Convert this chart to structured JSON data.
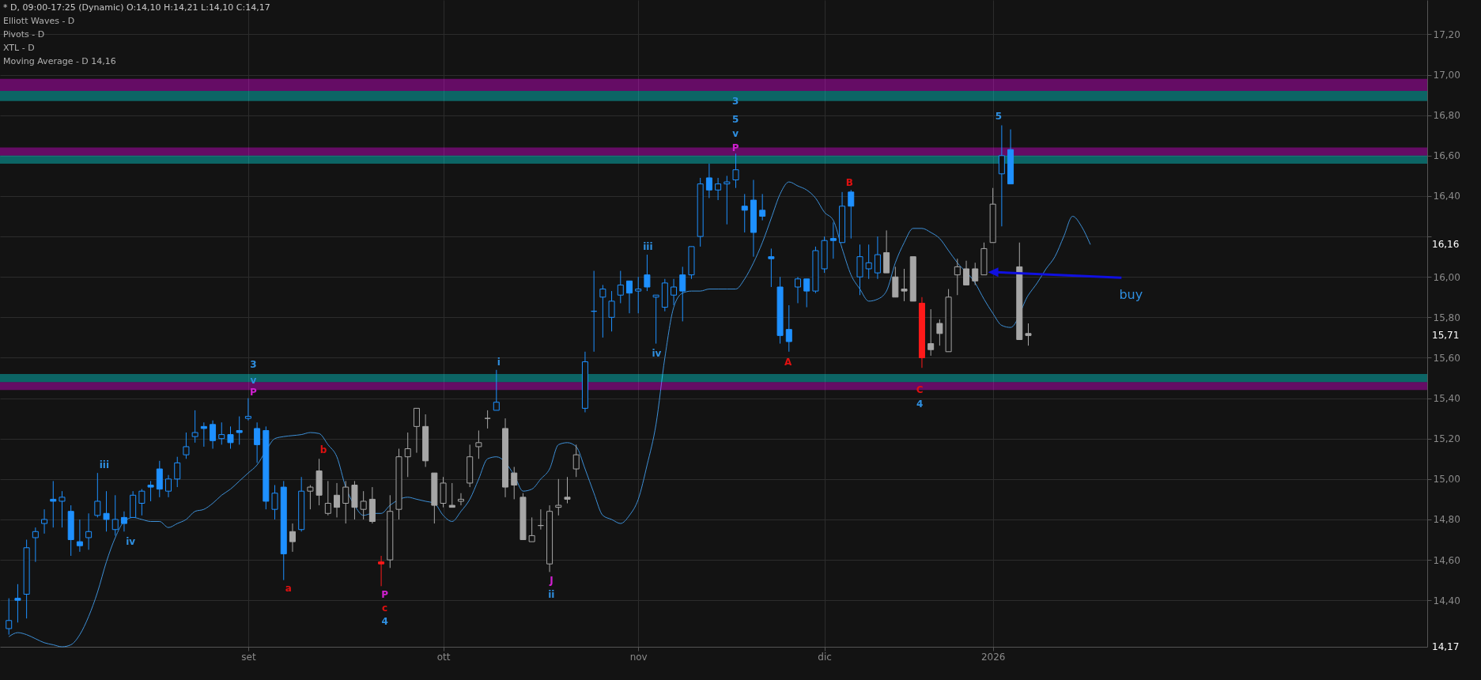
{
  "chart_data": {
    "type": "candlestick",
    "title": "* D, 09:00-17:25 (Dynamic) O:14,10 H:14,21 L:14,10 C:14,17",
    "categories": [
      null,
      null,
      null,
      null,
      null,
      null,
      null,
      null,
      null,
      null,
      null,
      null,
      null,
      null,
      null,
      null,
      null,
      null,
      null,
      null,
      null,
      null,
      null,
      null,
      null,
      null,
      null,
      "set",
      null,
      null,
      null,
      null,
      null,
      null,
      null,
      null,
      null,
      null,
      null,
      null,
      null,
      null,
      null,
      null,
      null,
      null,
      null,
      null,
      null,
      "ott",
      null,
      null,
      null,
      null,
      null,
      null,
      null,
      null,
      null,
      null,
      null,
      null,
      null,
      null,
      null,
      null,
      null,
      null,
      null,
      null,
      null,
      "nov",
      null,
      null,
      null,
      null,
      null,
      null,
      null,
      null,
      null,
      null,
      null,
      null,
      null,
      null,
      null,
      null,
      null,
      null,
      null,
      null,
      "dic",
      null,
      null,
      null,
      null,
      null,
      null,
      null,
      null,
      null,
      null,
      null,
      null,
      null,
      null,
      null,
      null,
      null,
      null,
      "2026",
      null,
      null,
      null,
      null,
      null,
      null,
      null,
      null,
      null,
      null,
      null,
      null,
      null,
      null,
      null,
      null,
      null,
      null,
      null,
      null,
      null,
      null,
      null,
      null,
      null,
      null,
      null,
      null,
      null,
      null,
      null,
      null,
      null,
      null,
      null,
      null,
      null,
      null,
      null,
      null,
      null,
      null,
      null,
      null,
      null,
      null,
      null,
      null
    ],
    "ohlc": [
      [
        14.26,
        14.41,
        14.23,
        14.3
      ],
      [
        14.41,
        14.48,
        14.29,
        14.4
      ],
      [
        14.43,
        14.7,
        14.31,
        14.66
      ],
      [
        14.71,
        14.76,
        14.59,
        14.74
      ],
      [
        14.78,
        14.85,
        14.73,
        14.8
      ],
      [
        14.9,
        14.99,
        14.76,
        14.89
      ],
      [
        14.89,
        14.94,
        14.76,
        14.91
      ],
      [
        14.84,
        14.87,
        14.62,
        14.7
      ],
      [
        14.69,
        14.8,
        14.64,
        14.67
      ],
      [
        14.71,
        14.83,
        14.65,
        14.74
      ],
      [
        14.82,
        15.03,
        14.81,
        14.89
      ],
      [
        14.83,
        14.94,
        14.74,
        14.8
      ],
      [
        14.75,
        14.92,
        14.72,
        14.8
      ],
      [
        14.81,
        14.84,
        14.74,
        14.78
      ],
      [
        14.81,
        14.94,
        14.81,
        14.92
      ],
      [
        14.88,
        14.95,
        14.82,
        14.94
      ],
      [
        14.97,
        14.99,
        14.89,
        14.96
      ],
      [
        15.05,
        15.09,
        14.91,
        14.95
      ],
      [
        14.94,
        15.02,
        14.91,
        15
      ],
      [
        15,
        15.11,
        14.96,
        15.08
      ],
      [
        15.12,
        15.23,
        15.1,
        15.16
      ],
      [
        15.21,
        15.34,
        15.18,
        15.23
      ],
      [
        15.26,
        15.28,
        15.16,
        15.25
      ],
      [
        15.27,
        15.29,
        15.15,
        15.19
      ],
      [
        15.2,
        15.28,
        15.17,
        15.22
      ],
      [
        15.22,
        15.26,
        15.15,
        15.18
      ],
      [
        15.24,
        15.31,
        15.17,
        15.23
      ],
      [
        15.3,
        15.4,
        15.29,
        15.31
      ],
      [
        15.25,
        15.28,
        15.08,
        15.17
      ],
      [
        15.24,
        15.26,
        14.85,
        14.89
      ],
      [
        14.85,
        14.97,
        14.8,
        14.93
      ],
      [
        14.96,
        14.99,
        14.5,
        14.63
      ],
      [
        14.74,
        14.78,
        14.64,
        14.69
      ],
      [
        14.75,
        15.01,
        14.74,
        14.94
      ],
      [
        14.94,
        14.97,
        14.85,
        14.96
      ],
      [
        15.04,
        15.1,
        14.87,
        14.92
      ],
      [
        14.83,
        14.99,
        14.82,
        14.88
      ],
      [
        14.92,
        14.98,
        14.81,
        14.86
      ],
      [
        14.88,
        14.99,
        14.78,
        14.96
      ],
      [
        14.97,
        14.99,
        14.8,
        14.86
      ],
      [
        14.85,
        14.94,
        14.8,
        14.89
      ],
      [
        14.9,
        14.96,
        14.78,
        14.79
      ],
      [
        14.59,
        14.62,
        14.47,
        14.58
      ],
      [
        14.6,
        14.92,
        14.56,
        14.84
      ],
      [
        14.85,
        15.15,
        14.8,
        15.11
      ],
      [
        15.11,
        15.23,
        15.01,
        15.15
      ],
      [
        15.26,
        15.35,
        15.13,
        15.35
      ],
      [
        15.26,
        15.32,
        15.06,
        15.09
      ],
      [
        15.03,
        15.03,
        14.78,
        14.87
      ],
      [
        14.88,
        15.01,
        14.86,
        14.98
      ],
      [
        14.87,
        14.98,
        14.86,
        14.86
      ],
      [
        14.89,
        14.93,
        14.87,
        14.9
      ],
      [
        14.98,
        15.17,
        14.96,
        15.11
      ],
      [
        15.16,
        15.24,
        15.1,
        15.18
      ],
      [
        15.3,
        15.34,
        15.25,
        15.3
      ],
      [
        15.34,
        15.54,
        15.34,
        15.38
      ],
      [
        15.25,
        15.3,
        14.91,
        14.96
      ],
      [
        15.03,
        15.06,
        14.9,
        14.97
      ],
      [
        14.91,
        14.93,
        14.7,
        14.7
      ],
      [
        14.69,
        14.81,
        14.69,
        14.72
      ],
      [
        14.77,
        14.85,
        14.75,
        14.77
      ],
      [
        14.58,
        14.87,
        14.54,
        14.84
      ],
      [
        14.86,
        15,
        14.82,
        14.87
      ],
      [
        14.91,
        15.01,
        14.88,
        14.9
      ],
      [
        15.05,
        15.17,
        15.01,
        15.12
      ],
      [
        15.35,
        15.63,
        15.33,
        15.58
      ],
      [
        15.83,
        16.03,
        15.63,
        15.83
      ],
      [
        15.9,
        15.96,
        15.7,
        15.94
      ],
      [
        15.8,
        15.93,
        15.73,
        15.88
      ],
      [
        15.91,
        16.03,
        15.87,
        15.96
      ],
      [
        15.98,
        15.98,
        15.82,
        15.92
      ],
      [
        15.93,
        16,
        15.82,
        15.94
      ],
      [
        16.01,
        16.11,
        15.93,
        15.95
      ],
      [
        15.9,
        15.91,
        15.67,
        15.91
      ],
      [
        15.85,
        15.99,
        15.83,
        15.97
      ],
      [
        15.91,
        15.99,
        15.86,
        15.95
      ],
      [
        16.01,
        16.05,
        15.78,
        15.93
      ],
      [
        16.01,
        16.15,
        15.99,
        16.15
      ],
      [
        16.2,
        16.49,
        16.15,
        16.46
      ],
      [
        16.49,
        16.56,
        16.39,
        16.43
      ],
      [
        16.43,
        16.49,
        16.38,
        16.46
      ],
      [
        16.46,
        16.5,
        16.26,
        16.47
      ],
      [
        16.48,
        16.61,
        16.44,
        16.53
      ],
      [
        16.35,
        16.41,
        16.22,
        16.33
      ],
      [
        16.38,
        16.48,
        16.1,
        16.22
      ],
      [
        16.33,
        16.41,
        16.28,
        16.3
      ],
      [
        16.1,
        16.14,
        15.95,
        16.09
      ],
      [
        15.95,
        16,
        15.67,
        15.71
      ],
      [
        15.74,
        15.86,
        15.63,
        15.68
      ],
      [
        15.95,
        16,
        15.87,
        15.99
      ],
      [
        15.99,
        15.99,
        15.85,
        15.93
      ],
      [
        15.93,
        16.15,
        15.92,
        16.13
      ],
      [
        16.04,
        16.2,
        16.02,
        16.18
      ],
      [
        16.19,
        16.27,
        16.09,
        16.18
      ],
      [
        16.17,
        16.42,
        16.17,
        16.35
      ],
      [
        16.42,
        16.43,
        16.19,
        16.35
      ],
      [
        16,
        16.16,
        15.91,
        16.1
      ],
      [
        16.04,
        16.16,
        15.99,
        16.07
      ],
      [
        16.02,
        16.2,
        15.99,
        16.11
      ],
      [
        16.12,
        16.23,
        16.02,
        16.02
      ],
      [
        16,
        16.05,
        15.9,
        15.9
      ],
      [
        15.94,
        16.04,
        15.88,
        15.93
      ],
      [
        16.1,
        16.1,
        15.88,
        15.88
      ],
      [
        15.87,
        15.9,
        15.55,
        15.6
      ],
      [
        15.67,
        15.84,
        15.61,
        15.64
      ],
      [
        15.77,
        15.79,
        15.66,
        15.72
      ],
      [
        15.63,
        15.94,
        15.63,
        15.9
      ],
      [
        16.01,
        16.09,
        15.91,
        16.05
      ],
      [
        16.04,
        16.08,
        15.96,
        15.96
      ],
      [
        16.04,
        16.07,
        15.96,
        15.98
      ],
      [
        16.01,
        16.17,
        16.01,
        16.14
      ],
      [
        16.17,
        16.44,
        16.17,
        16.36
      ],
      [
        16.51,
        16.75,
        16.25,
        16.6
      ],
      [
        16.63,
        16.73,
        16.46,
        16.46
      ],
      [
        16.05,
        16.17,
        15.69,
        15.69
      ],
      [
        15.72,
        15.77,
        15.66,
        15.71
      ],
      null,
      null,
      null,
      null,
      null,
      null,
      null,
      null,
      null,
      null,
      null,
      null,
      null,
      null,
      null,
      null,
      null,
      null,
      null,
      null,
      null,
      null,
      null,
      null,
      null,
      null,
      null,
      null,
      null,
      null,
      null,
      null,
      null,
      null,
      null,
      null,
      null,
      null,
      null,
      null,
      null,
      null,
      null,
      null
    ],
    "colors": [
      "#1e90ff",
      "#1e90ff",
      "#1e90ff",
      "#1e90ff",
      "#1e90ff",
      "#1e90ff",
      "#1e90ff",
      "#1e90ff",
      "#1e90ff",
      "#1e90ff",
      "#1e90ff",
      "#1e90ff",
      "#1e90ff",
      "#1e90ff",
      "#1e90ff",
      "#1e90ff",
      "#1e90ff",
      "#1e90ff",
      "#1e90ff",
      "#1e90ff",
      "#1e90ff",
      "#1e90ff",
      "#1e90ff",
      "#1e90ff",
      "#1e90ff",
      "#1e90ff",
      "#1e90ff",
      "#1e90ff",
      "#1e90ff",
      "#1e90ff",
      "#1e90ff",
      "#1e90ff",
      "#a6a6a6",
      "#1e90ff",
      "#a6a6a6",
      "#a6a6a6",
      "#a6a6a6",
      "#a6a6a6",
      "#a6a6a6",
      "#a6a6a6",
      "#a6a6a6",
      "#a6a6a6",
      "#ff1a1a",
      "#a6a6a6",
      "#a6a6a6",
      "#a6a6a6",
      "#a6a6a6",
      "#a6a6a6",
      "#a6a6a6",
      "#a6a6a6",
      "#a6a6a6",
      "#a6a6a6",
      "#a6a6a6",
      "#a6a6a6",
      "#a6a6a6",
      "#1e90ff",
      "#a6a6a6",
      "#a6a6a6",
      "#a6a6a6",
      "#a6a6a6",
      "#a6a6a6",
      "#a6a6a6",
      "#a6a6a6",
      "#a6a6a6",
      "#a6a6a6",
      "#1e90ff",
      "#1e90ff",
      "#1e90ff",
      "#1e90ff",
      "#1e90ff",
      "#1e90ff",
      "#1e90ff",
      "#1e90ff",
      "#1e90ff",
      "#1e90ff",
      "#1e90ff",
      "#1e90ff",
      "#1e90ff",
      "#1e90ff",
      "#1e90ff",
      "#1e90ff",
      "#1e90ff",
      "#1e90ff",
      "#1e90ff",
      "#1e90ff",
      "#1e90ff",
      "#1e90ff",
      "#1e90ff",
      "#1e90ff",
      "#1e90ff",
      "#1e90ff",
      "#1e90ff",
      "#1e90ff",
      "#1e90ff",
      "#1e90ff",
      "#1e90ff",
      "#1e90ff",
      "#1e90ff",
      "#1e90ff",
      "#a6a6a6",
      "#a6a6a6",
      "#a6a6a6",
      "#a6a6a6",
      "#ff1a1a",
      "#a6a6a6",
      "#a6a6a6",
      "#a6a6a6",
      "#a6a6a6",
      "#a6a6a6",
      "#a6a6a6",
      "#a6a6a6",
      "#a6a6a6",
      "#1e90ff",
      "#1e90ff",
      "#a6a6a6",
      "#a6a6a6",
      null,
      null,
      null,
      null,
      null,
      null,
      null,
      null,
      null,
      null,
      null,
      null,
      null,
      null,
      null,
      null,
      null,
      null,
      null,
      null,
      null,
      null,
      null,
      null,
      null,
      null,
      null,
      null,
      null,
      null,
      null,
      null,
      null,
      null,
      null,
      null,
      null,
      null,
      null,
      null,
      null,
      null,
      null,
      null
    ],
    "series": [
      {
        "type": "line",
        "color": "#3d8fd6",
        "values": [
          14.22,
          14.24,
          14.23,
          14.21,
          14.19,
          14.18,
          14.17,
          14.18,
          14.23,
          14.32,
          14.44,
          14.59,
          14.71,
          14.79,
          14.81,
          14.8,
          14.79,
          14.79,
          14.76,
          14.78,
          14.8,
          14.84,
          14.85,
          14.88,
          14.92,
          14.95,
          14.99,
          15.03,
          15.07,
          15.14,
          15.2,
          15.21,
          15.215,
          15.22,
          15.23,
          15.225,
          15.17,
          15.11,
          14.96,
          14.87,
          14.82,
          14.83,
          14.83,
          14.87,
          null,
          14.91,
          14.9,
          14.89,
          14.88,
          14.82,
          14.79,
          14.84,
          14.9,
          15,
          15.1,
          15.11,
          null,
          15.02,
          14.94,
          14.95,
          15,
          15.05,
          15.17,
          15.18,
          15.16,
          15.05,
          14.93,
          14.82,
          14.8,
          14.78,
          14.82,
          14.9,
          15.07,
          15.27,
          15.6,
          15.85,
          15.92,
          15.93,
          15.93,
          15.94,
          15.94,
          15.94,
          15.94,
          15.99,
          16.07,
          16.17,
          16.29,
          16.41,
          16.47,
          16.45,
          16.43,
          16.39,
          16.32,
          16.28,
          16.14,
          16.01,
          15.94,
          15.88,
          15.89,
          15.93,
          16.07,
          16.17,
          16.24,
          16.24,
          16.22,
          16.19,
          16.13,
          16.07,
          null,
          15.97,
          15.89,
          15.82,
          15.76,
          15.75,
          null,
          15.91,
          15.97,
          16.04,
          16.1,
          16.2,
          16.3,
          16.25,
          16.16,
          null,
          null,
          null,
          null,
          null,
          null,
          null,
          null,
          null,
          null,
          null,
          null,
          null,
          null,
          null,
          null,
          null,
          null,
          null,
          null,
          null,
          null,
          null,
          null,
          null,
          null,
          null,
          null,
          null,
          null,
          null,
          null,
          null,
          null,
          null,
          null,
          null
        ]
      }
    ],
    "bands": [
      {
        "axis": "y",
        "from": 16.92,
        "to": 16.98,
        "color": "#ff00ff"
      },
      {
        "axis": "y",
        "from": 16.87,
        "to": 16.92,
        "color": "#00ffff"
      },
      {
        "axis": "y",
        "from": 16.6,
        "to": 16.64,
        "color": "#ff00ff"
      },
      {
        "axis": "y",
        "from": 16.56,
        "to": 16.6,
        "color": "#00ffff"
      },
      {
        "axis": "y",
        "from": 15.48,
        "to": 15.52,
        "color": "#00ffff"
      },
      {
        "axis": "y",
        "from": 15.44,
        "to": 15.48,
        "color": "#ff00ff"
      }
    ],
    "ylim": [
      14.17,
      17.37
    ],
    "yticks": [
      {
        "value": 14.4,
        "label": "14,40"
      },
      {
        "value": 14.6,
        "label": "14,60"
      },
      {
        "value": 14.8,
        "label": "14,80"
      },
      {
        "value": 15,
        "label": "15,00"
      },
      {
        "value": 15.2,
        "label": "15,20"
      },
      {
        "value": 15.4,
        "label": "15,40"
      },
      {
        "value": 15.6,
        "label": "15,60"
      },
      {
        "value": 15.8,
        "label": "15,80"
      },
      {
        "value": 16,
        "label": "16,00"
      },
      {
        "value": 16.2,
        "label": null
      },
      {
        "value": 16.4,
        "label": "16,40"
      },
      {
        "value": 16.6,
        "label": "16,60"
      },
      {
        "value": 16.8,
        "label": "16,80"
      },
      {
        "value": 17,
        "label": "17,00"
      },
      {
        "value": 17.2,
        "label": "17,20"
      }
    ],
    "grid": true,
    "annotations": [
      "Elliott Waves - D",
      "Pivots - D",
      "XTL - D",
      "Moving Average - D 14,16",
      "iii",
      "iv",
      "3",
      "v",
      "P",
      "a",
      "b",
      "P",
      "c",
      "4",
      "i",
      "J",
      "ii",
      "iii",
      "iv",
      "3",
      "5",
      "v",
      "P",
      "A",
      "B",
      "C",
      "4",
      "5",
      "16,16",
      "15,71",
      "14,17",
      "buy"
    ]
  }
}
